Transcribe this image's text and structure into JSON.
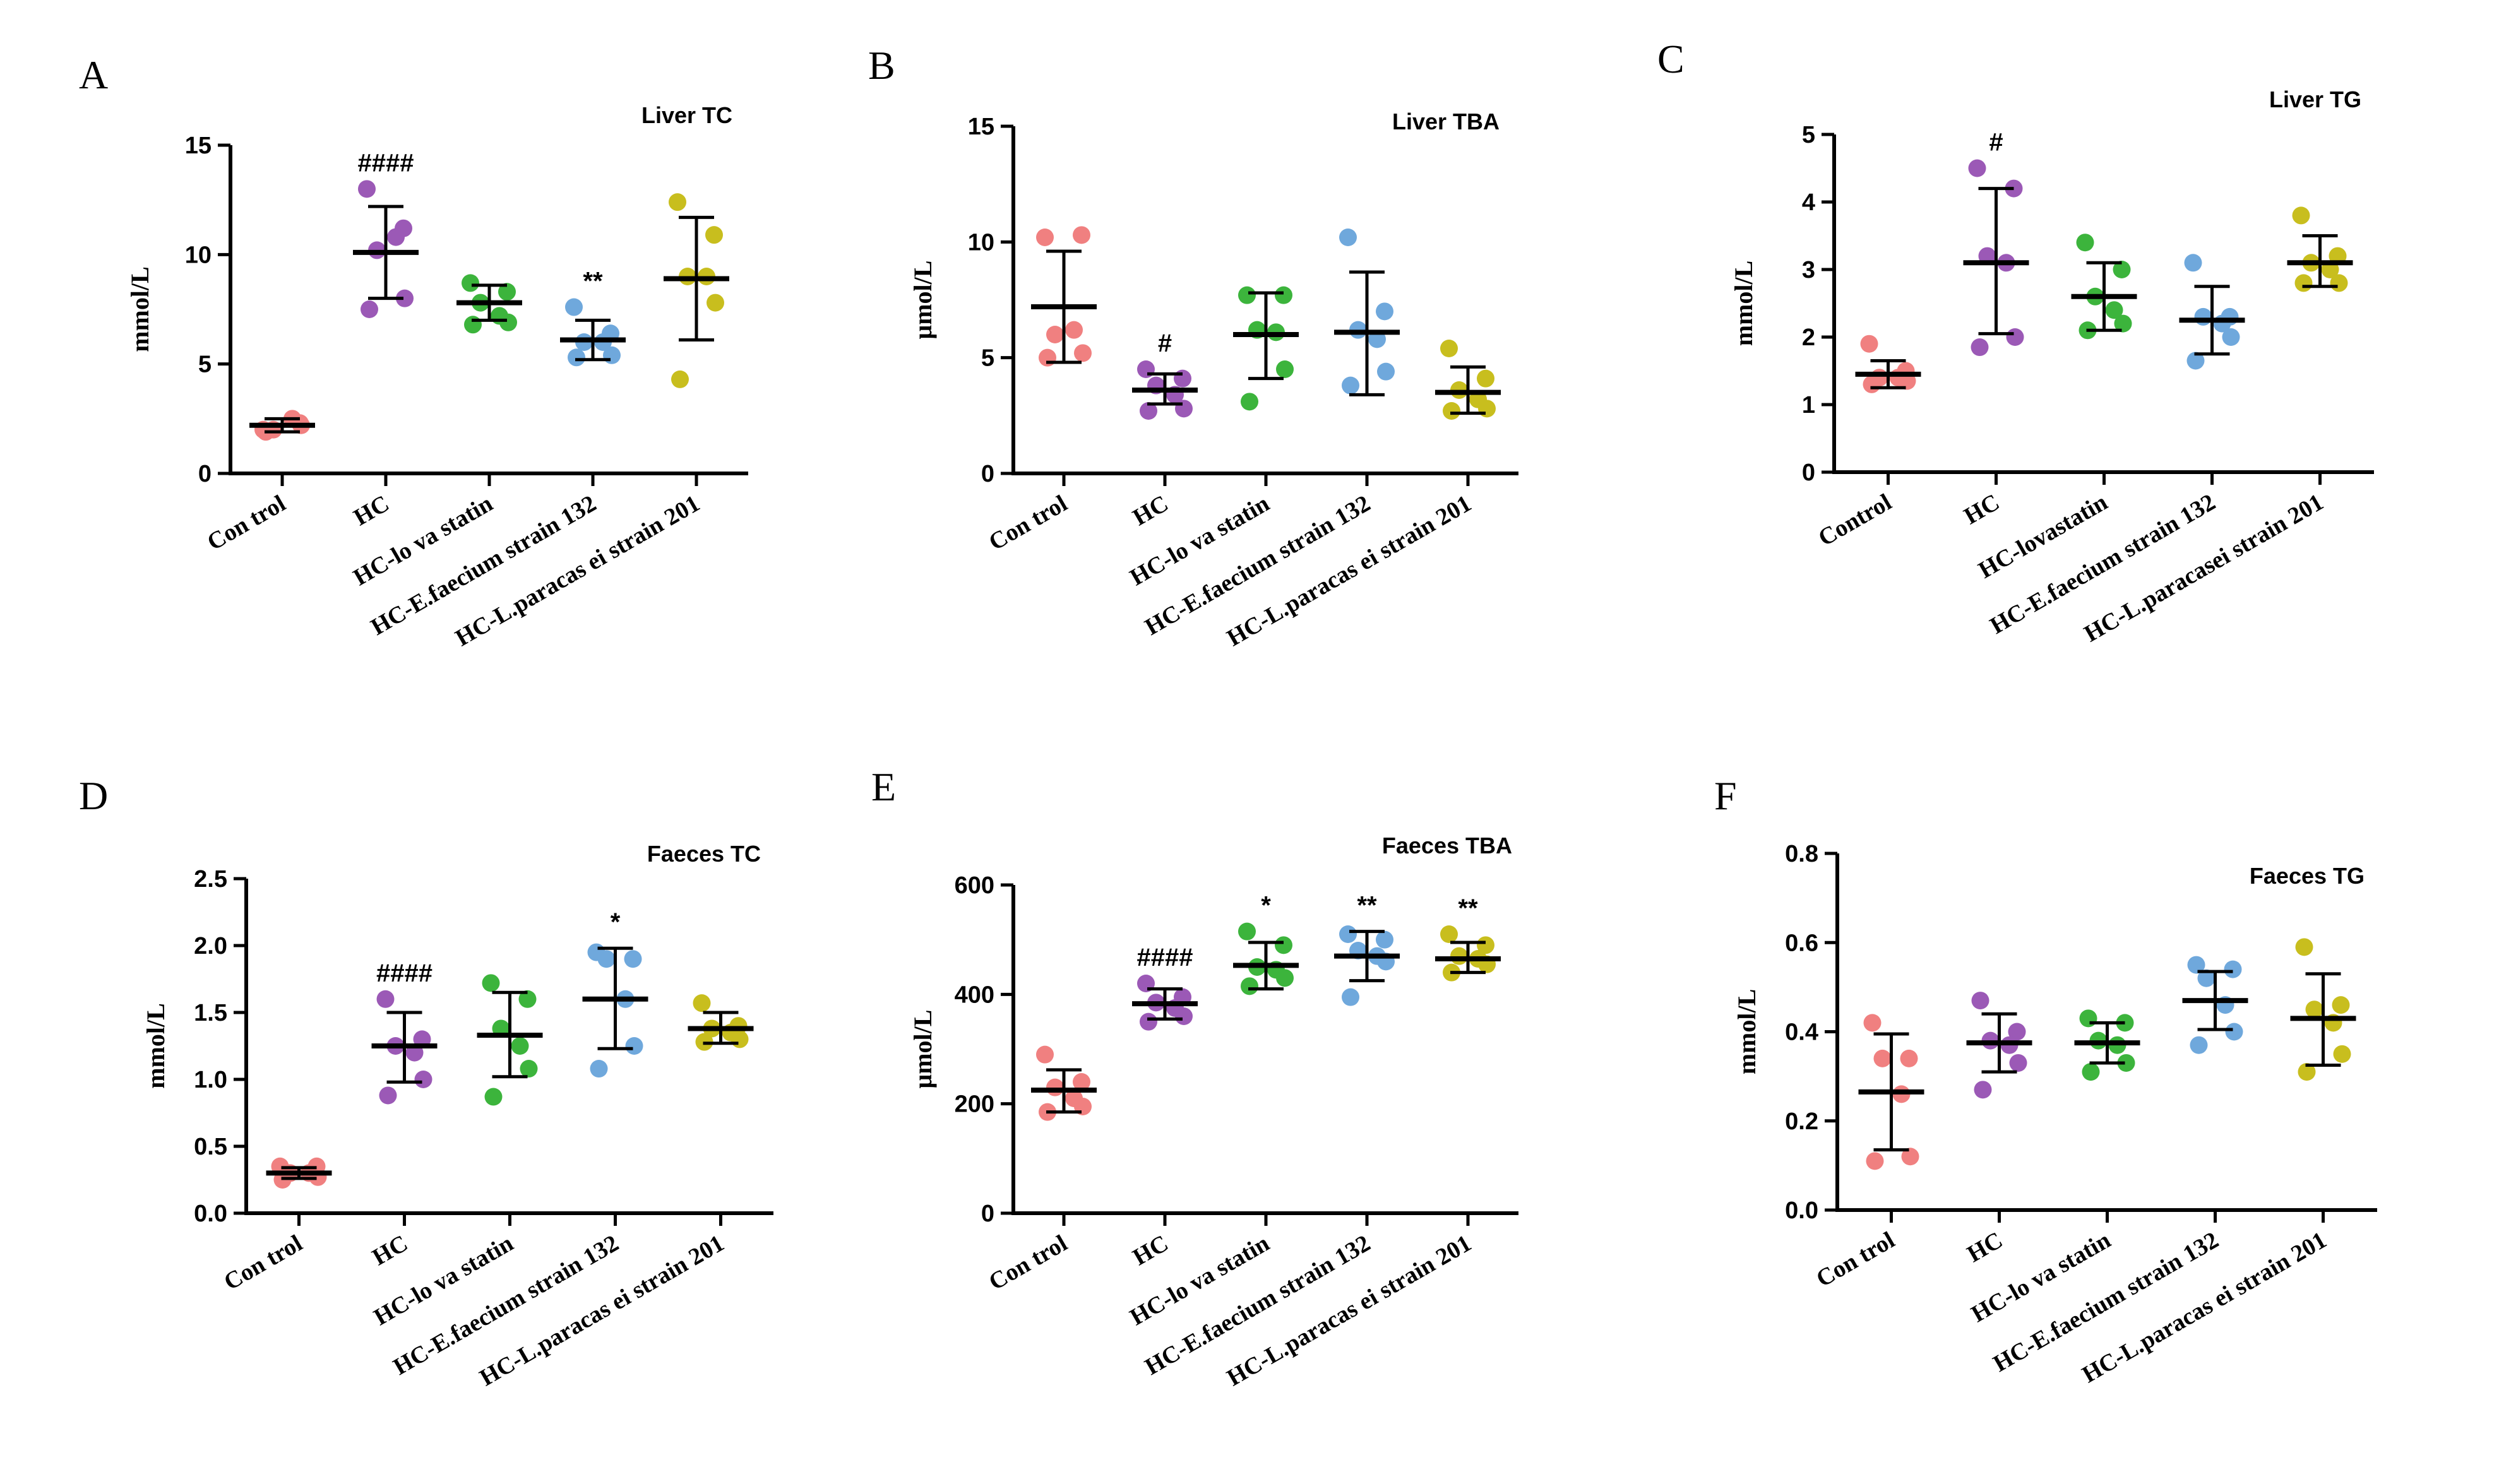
{
  "chart_data": [
    {
      "panel": "A",
      "title": "Liver TC",
      "type": "scatter",
      "ylabel": "mmol/L",
      "ylim": [
        0,
        15
      ],
      "yticks": [
        0,
        5,
        10,
        15
      ],
      "ytick_labels": [
        "0",
        "5",
        "10",
        "15"
      ],
      "categories": [
        "Con trol",
        "HC",
        "HC-lo va statin",
        "HC-E.faecium strain 132",
        "HC-L.paracas ei strain 201"
      ],
      "groups": [
        {
          "points": [
            2.0,
            2.3,
            2.0,
            2.5,
            2.2,
            1.9
          ],
          "mean": 2.2,
          "sd_low": 1.9,
          "sd_high": 2.5,
          "sig": ""
        },
        {
          "points": [
            13.0,
            11.2,
            10.2,
            10.8,
            8.0,
            7.5
          ],
          "mean": 10.1,
          "sd_low": 8.0,
          "sd_high": 12.2,
          "sig": "####"
        },
        {
          "points": [
            8.7,
            8.3,
            7.8,
            7.2,
            6.9,
            6.8
          ],
          "mean": 7.8,
          "sd_low": 7.0,
          "sd_high": 8.6,
          "sig": ""
        },
        {
          "points": [
            7.6,
            6.4,
            6.0,
            6.0,
            5.4,
            5.3
          ],
          "mean": 6.1,
          "sd_low": 5.2,
          "sd_high": 7.0,
          "sig": "**"
        },
        {
          "points": [
            12.4,
            10.9,
            9.0,
            9.0,
            7.8,
            4.3
          ],
          "mean": 8.9,
          "sd_low": 6.1,
          "sd_high": 11.7,
          "sig": ""
        }
      ]
    },
    {
      "panel": "B",
      "title": "Liver TBA",
      "type": "scatter",
      "ylabel": "μmol/L",
      "ylim": [
        0,
        15
      ],
      "yticks": [
        0,
        5,
        10,
        15
      ],
      "ytick_labels": [
        "0",
        "5",
        "10",
        "15"
      ],
      "categories": [
        "Con trol",
        "HC",
        "HC-lo va statin",
        "HC-E.faecium strain 132",
        "HC-L.paracas ei strain 201"
      ],
      "groups": [
        {
          "points": [
            10.2,
            10.3,
            6.0,
            6.2,
            5.2,
            5.0
          ],
          "mean": 7.2,
          "sd_low": 4.8,
          "sd_high": 9.6,
          "sig": ""
        },
        {
          "points": [
            4.5,
            4.1,
            3.8,
            3.4,
            2.8,
            2.7
          ],
          "mean": 3.6,
          "sd_low": 3.0,
          "sd_high": 4.3,
          "sig": "#"
        },
        {
          "points": [
            7.7,
            7.7,
            6.2,
            6.1,
            4.5,
            3.1
          ],
          "mean": 6.0,
          "sd_low": 4.1,
          "sd_high": 7.8,
          "sig": ""
        },
        {
          "points": [
            10.2,
            7.0,
            6.2,
            5.8,
            4.4,
            3.8
          ],
          "mean": 6.1,
          "sd_low": 3.4,
          "sd_high": 8.7,
          "sig": ""
        },
        {
          "points": [
            5.4,
            4.1,
            3.6,
            3.2,
            2.8,
            2.7
          ],
          "mean": 3.5,
          "sd_low": 2.6,
          "sd_high": 4.6,
          "sig": ""
        }
      ]
    },
    {
      "panel": "C",
      "title": "Liver TG",
      "type": "scatter",
      "ylabel": "mmol/L",
      "ylim": [
        0,
        5
      ],
      "yticks": [
        0,
        1,
        2,
        3,
        4,
        5
      ],
      "ytick_labels": [
        "0",
        "1",
        "2",
        "3",
        "4",
        "5"
      ],
      "categories": [
        "Control",
        "HC",
        "HC-lovastatin",
        "HC-E.faecium strain 132",
        "HC-L.paracasei strain 201"
      ],
      "groups": [
        {
          "points": [
            1.9,
            1.5,
            1.4,
            1.4,
            1.35,
            1.3
          ],
          "mean": 1.45,
          "sd_low": 1.25,
          "sd_high": 1.65,
          "sig": ""
        },
        {
          "points": [
            4.5,
            4.2,
            3.2,
            3.1,
            2.0,
            1.85
          ],
          "mean": 3.1,
          "sd_low": 2.05,
          "sd_high": 4.2,
          "sig": "#"
        },
        {
          "points": [
            3.4,
            3.0,
            2.6,
            2.4,
            2.2,
            2.1
          ],
          "mean": 2.6,
          "sd_low": 2.1,
          "sd_high": 3.1,
          "sig": ""
        },
        {
          "points": [
            3.1,
            2.3,
            2.3,
            2.2,
            2.0,
            1.65
          ],
          "mean": 2.25,
          "sd_low": 1.75,
          "sd_high": 2.75,
          "sig": ""
        },
        {
          "points": [
            3.8,
            3.2,
            3.1,
            3.0,
            2.8,
            2.8
          ],
          "mean": 3.1,
          "sd_low": 2.75,
          "sd_high": 3.5,
          "sig": ""
        }
      ]
    },
    {
      "panel": "D",
      "title": "Faeces TC",
      "type": "scatter",
      "ylabel": "mmol/L",
      "ylim": [
        0,
        2.5
      ],
      "yticks": [
        0,
        0.5,
        1.0,
        1.5,
        2.0,
        2.5
      ],
      "ytick_labels": [
        "0.0",
        "0.5",
        "1.0",
        "1.5",
        "2.0",
        "2.5"
      ],
      "categories": [
        "Con trol",
        "HC",
        "HC-lo va statin",
        "HC-E.faecium strain 132",
        "HC-L.paracas ei strain 201"
      ],
      "groups": [
        {
          "points": [
            0.35,
            0.35,
            0.3,
            0.3,
            0.27,
            0.25
          ],
          "mean": 0.3,
          "sd_low": 0.26,
          "sd_high": 0.34,
          "sig": ""
        },
        {
          "points": [
            1.6,
            1.3,
            1.25,
            1.2,
            1.0,
            0.88
          ],
          "mean": 1.25,
          "sd_low": 0.98,
          "sd_high": 1.5,
          "sig": "####"
        },
        {
          "points": [
            1.72,
            1.6,
            1.38,
            1.25,
            1.08,
            0.87
          ],
          "mean": 1.33,
          "sd_low": 1.02,
          "sd_high": 1.65,
          "sig": ""
        },
        {
          "points": [
            1.95,
            1.9,
            1.9,
            1.6,
            1.25,
            1.08
          ],
          "mean": 1.6,
          "sd_low": 1.23,
          "sd_high": 1.98,
          "sig": "*"
        },
        {
          "points": [
            1.57,
            1.4,
            1.38,
            1.35,
            1.3,
            1.28
          ],
          "mean": 1.38,
          "sd_low": 1.27,
          "sd_high": 1.5,
          "sig": ""
        }
      ]
    },
    {
      "panel": "E",
      "title": "Faeces TBA",
      "type": "scatter",
      "ylabel": "μmol/L",
      "ylim": [
        0,
        600
      ],
      "yticks": [
        0,
        200,
        400,
        600
      ],
      "ytick_labels": [
        "0",
        "200",
        "400",
        "600"
      ],
      "categories": [
        "Con trol",
        "HC",
        "HC-lo va statin",
        "HC-E.faecium strain 132",
        "HC-L.paracas ei strain 201"
      ],
      "groups": [
        {
          "points": [
            290,
            240,
            230,
            210,
            195,
            185
          ],
          "mean": 225,
          "sd_low": 185,
          "sd_high": 262,
          "sig": ""
        },
        {
          "points": [
            420,
            395,
            385,
            375,
            360,
            350
          ],
          "mean": 383,
          "sd_low": 355,
          "sd_high": 410,
          "sig": "####"
        },
        {
          "points": [
            515,
            490,
            450,
            445,
            430,
            415
          ],
          "mean": 453,
          "sd_low": 410,
          "sd_high": 495,
          "sig": "*"
        },
        {
          "points": [
            510,
            500,
            480,
            470,
            460,
            395
          ],
          "mean": 470,
          "sd_low": 425,
          "sd_high": 515,
          "sig": "**"
        },
        {
          "points": [
            510,
            490,
            470,
            465,
            455,
            440
          ],
          "mean": 465,
          "sd_low": 440,
          "sd_high": 495,
          "sig": "**"
        }
      ]
    },
    {
      "panel": "F",
      "title": "Faeces TG",
      "type": "scatter",
      "ylabel": "mmol/L",
      "ylim": [
        0,
        0.8
      ],
      "yticks": [
        0,
        0.2,
        0.4,
        0.6,
        0.8
      ],
      "ytick_labels": [
        "0.0",
        "0.2",
        "0.4",
        "0.6",
        "0.8"
      ],
      "categories": [
        "Con trol",
        "HC",
        "HC-lo va statin",
        "HC-E.faecium strain 132",
        "HC-L.paracas ei strain 201"
      ],
      "groups": [
        {
          "points": [
            0.42,
            0.34,
            0.34,
            0.26,
            0.12,
            0.11
          ],
          "mean": 0.265,
          "sd_low": 0.135,
          "sd_high": 0.395,
          "sig": ""
        },
        {
          "points": [
            0.47,
            0.4,
            0.38,
            0.37,
            0.33,
            0.27
          ],
          "mean": 0.375,
          "sd_low": 0.31,
          "sd_high": 0.44,
          "sig": ""
        },
        {
          "points": [
            0.43,
            0.42,
            0.38,
            0.37,
            0.33,
            0.31
          ],
          "mean": 0.375,
          "sd_low": 0.33,
          "sd_high": 0.42,
          "sig": ""
        },
        {
          "points": [
            0.55,
            0.54,
            0.52,
            0.46,
            0.4,
            0.37
          ],
          "mean": 0.47,
          "sd_low": 0.405,
          "sd_high": 0.535,
          "sig": ""
        },
        {
          "points": [
            0.59,
            0.46,
            0.45,
            0.42,
            0.35,
            0.31
          ],
          "mean": 0.43,
          "sd_low": 0.325,
          "sd_high": 0.53,
          "sig": ""
        }
      ]
    }
  ],
  "colors": [
    "#f08080",
    "#9b59b6",
    "#3cb43c",
    "#6fa8dc",
    "#c8be1e"
  ]
}
